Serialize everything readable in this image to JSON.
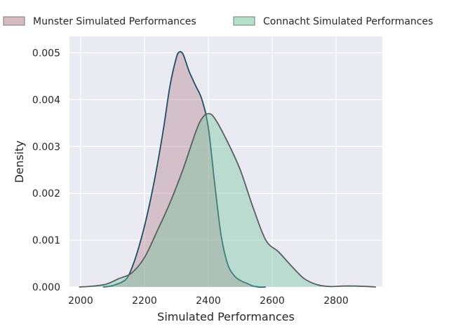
{
  "chart_data": {
    "type": "area",
    "xlabel": "Simulated Performances",
    "ylabel": "Density",
    "xlim": [
      1965,
      2945
    ],
    "ylim": [
      0,
      0.00535
    ],
    "x_ticks": [
      2000,
      2200,
      2400,
      2600,
      2800
    ],
    "x_tick_labels": [
      "2000",
      "2200",
      "2400",
      "2600",
      "2800"
    ],
    "y_ticks": [
      0,
      0.001,
      0.002,
      0.003,
      0.004,
      0.005
    ],
    "y_tick_labels": [
      "0.000",
      "0.001",
      "0.002",
      "0.003",
      "0.004",
      "0.005"
    ],
    "grid": true,
    "legend_position": "top",
    "series": [
      {
        "name": "Munster Simulated Performances",
        "fill": "#b5838d",
        "line": "#1d4e63",
        "x": [
          2070,
          2100,
          2140,
          2160,
          2180,
          2200,
          2220,
          2240,
          2260,
          2280,
          2300,
          2310,
          2320,
          2330,
          2340,
          2360,
          2380,
          2400,
          2420,
          2440,
          2460,
          2480,
          2500,
          2520,
          2540,
          2560,
          2580
        ],
        "y": [
          0,
          3e-05,
          0.00015,
          0.0004,
          0.0008,
          0.0013,
          0.0019,
          0.0026,
          0.0034,
          0.0043,
          0.0049,
          0.00502,
          0.00498,
          0.0048,
          0.0046,
          0.0043,
          0.004,
          0.0034,
          0.0022,
          0.0011,
          0.0005,
          0.00025,
          0.00014,
          8e-05,
          2e-05,
          0,
          0
        ]
      },
      {
        "name": "Connacht Simulated Performances",
        "fill": "#74c69d",
        "line": "#5b5e60",
        "x": [
          1995,
          2040,
          2080,
          2120,
          2160,
          2200,
          2240,
          2280,
          2320,
          2360,
          2380,
          2400,
          2420,
          2460,
          2500,
          2540,
          2580,
          2620,
          2660,
          2700,
          2740,
          2780,
          2820,
          2860,
          2900,
          2925
        ],
        "y": [
          0,
          2e-05,
          6e-05,
          0.00018,
          0.0003,
          0.00063,
          0.0012,
          0.0018,
          0.0025,
          0.0033,
          0.0036,
          0.0037,
          0.0036,
          0.0031,
          0.0025,
          0.0017,
          0.001,
          0.00075,
          0.00045,
          0.00018,
          5e-05,
          1e-05,
          2e-05,
          2e-05,
          1e-05,
          0
        ]
      }
    ]
  }
}
